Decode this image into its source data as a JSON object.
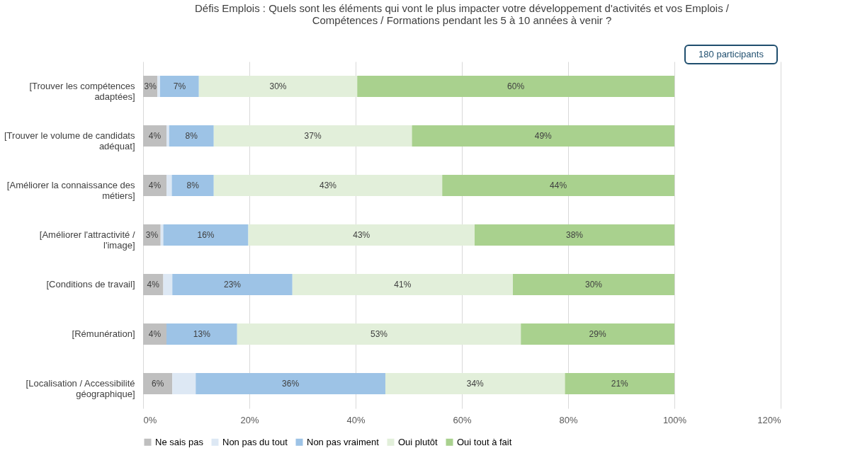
{
  "chart_data": {
    "type": "bar",
    "orientation": "horizontal",
    "stacked": true,
    "title": "Défis Emplois : Quels sont les éléments qui vont le plus impacter votre développement d'activités et vos Emplois / Compétences / Formations pendant les 5 à 10 années à venir ?",
    "categories": [
      "[Trouver les compétences adaptées]",
      "[Trouver le volume de candidats adéquat]",
      "[Améliorer la connaissance des métiers]",
      "[Améliorer l'attractivité / l'image]",
      "[Conditions de travail]",
      "[Rémunération]",
      "[Localisation / Accessibilité géographique]"
    ],
    "series": [
      {
        "name": "Ne sais pas",
        "color": "#bfbfbf",
        "values": [
          2.7,
          4.4,
          4.4,
          3.3,
          3.8,
          4.4,
          5.5
        ],
        "value_labels": [
          "3%",
          "4%",
          "4%",
          "3%",
          "4%",
          "4%",
          "6%"
        ]
      },
      {
        "name": "Non pas du tout",
        "color": "#dde8f4",
        "values": [
          0.5,
          0.5,
          1.0,
          0.5,
          1.7,
          0,
          4.4
        ],
        "value_labels": [
          null,
          null,
          null,
          null,
          null,
          null,
          null
        ]
      },
      {
        "name": "Non pas vraiment",
        "color": "#9dc3e6",
        "values": [
          7.3,
          8.4,
          7.9,
          16.0,
          22.6,
          13.3,
          35.7
        ],
        "value_labels": [
          "7%",
          "8%",
          "8%",
          "16%",
          "23%",
          "13%",
          "36%"
        ]
      },
      {
        "name": "Oui plutôt",
        "color": "#e2efda",
        "values": [
          29.8,
          37.3,
          43.0,
          42.6,
          41.5,
          53.4,
          33.8
        ],
        "value_labels": [
          "30%",
          "37%",
          "43%",
          "43%",
          "41%",
          "53%",
          "34%"
        ]
      },
      {
        "name": "Oui tout à fait",
        "color": "#a9d18e",
        "values": [
          59.7,
          49.4,
          43.7,
          37.6,
          30.4,
          28.9,
          20.6
        ],
        "value_labels": [
          "60%",
          "49%",
          "44%",
          "38%",
          "30%",
          "29%",
          "21%"
        ]
      }
    ],
    "xlim": [
      0,
      120
    ],
    "xticks": [
      {
        "value": 0,
        "label": "0%"
      },
      {
        "value": 20,
        "label": "20%"
      },
      {
        "value": 40,
        "label": "40%"
      },
      {
        "value": 60,
        "label": "60%"
      },
      {
        "value": 80,
        "label": "80%"
      },
      {
        "value": 100,
        "label": "100%"
      },
      {
        "value": 120,
        "label": "120%"
      }
    ],
    "grid": "x",
    "legend": "bottom",
    "annotations": [
      "180 participants"
    ]
  }
}
